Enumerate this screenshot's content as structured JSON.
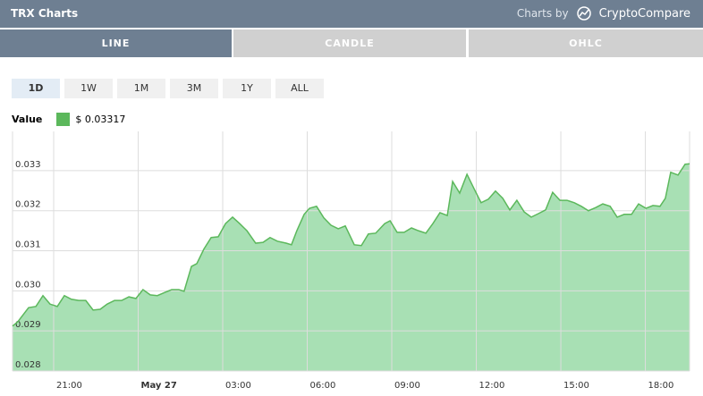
{
  "widget": {
    "title": "TRX Charts",
    "brand_prefix": "Charts by",
    "brand_name": "CryptoCompare",
    "tabs": [
      "LINE",
      "CANDLE",
      "OHLC"
    ],
    "active_tab": 0,
    "ranges": [
      "1D",
      "1W",
      "1M",
      "3M",
      "1Y",
      "ALL"
    ],
    "active_range": 0
  },
  "chart_data": {
    "type": "area",
    "series": [
      {
        "name": "Value",
        "color": "#5cb85c",
        "fill": "#a8e0b4",
        "x": [
          19.54,
          19.73,
          20.11,
          20.37,
          20.62,
          20.87,
          21.13,
          21.38,
          21.63,
          21.89,
          22.14,
          22.4,
          22.65,
          22.9,
          23.16,
          23.41,
          23.67,
          23.92,
          24.17,
          24.43,
          24.68,
          24.94,
          25.19,
          25.44,
          25.63,
          25.89,
          26.08,
          26.33,
          26.59,
          26.84,
          27.1,
          27.35,
          27.6,
          27.86,
          28.17,
          28.43,
          28.68,
          28.94,
          29.25,
          29.44,
          29.63,
          29.89,
          30.08,
          30.33,
          30.59,
          30.84,
          31.1,
          31.35,
          31.67,
          31.92,
          32.17,
          32.43,
          32.75,
          32.94,
          33.19,
          33.44,
          33.7,
          33.95,
          34.21,
          34.46,
          34.71,
          34.97,
          35.16,
          35.41,
          35.67,
          35.92,
          36.17,
          36.43,
          36.68,
          36.94,
          37.19,
          37.44,
          37.7,
          37.95,
          38.21,
          38.46,
          38.71,
          38.97,
          39.22,
          39.48,
          39.73,
          39.98,
          40.24,
          40.49,
          40.75,
          41.0,
          41.25,
          41.51,
          41.76,
          42.02,
          42.27,
          42.52,
          42.71,
          42.9,
          43.16,
          43.41,
          43.57
        ],
        "values": [
          0.02912,
          0.02923,
          0.02958,
          0.02961,
          0.02988,
          0.02967,
          0.02961,
          0.02988,
          0.02979,
          0.02976,
          0.02976,
          0.02952,
          0.02954,
          0.02967,
          0.02976,
          0.02976,
          0.02985,
          0.02981,
          0.03003,
          0.0299,
          0.02988,
          0.02996,
          0.03003,
          0.03003,
          0.02999,
          0.03061,
          0.03068,
          0.03104,
          0.03133,
          0.03135,
          0.03168,
          0.03184,
          0.03168,
          0.0315,
          0.03119,
          0.03121,
          0.03133,
          0.03124,
          0.03119,
          0.03115,
          0.0315,
          0.03191,
          0.03206,
          0.03211,
          0.03182,
          0.03164,
          0.03155,
          0.03162,
          0.03115,
          0.03113,
          0.03142,
          0.03144,
          0.03168,
          0.03175,
          0.03146,
          0.03146,
          0.03157,
          0.0315,
          0.03144,
          0.03168,
          0.03195,
          0.03188,
          0.03273,
          0.03244,
          0.03291,
          0.03255,
          0.0322,
          0.03229,
          0.03249,
          0.03231,
          0.03202,
          0.03226,
          0.03197,
          0.03184,
          0.03193,
          0.03202,
          0.03246,
          0.03226,
          0.03226,
          0.0322,
          0.03211,
          0.032,
          0.03208,
          0.03217,
          0.03211,
          0.03184,
          0.03191,
          0.03191,
          0.03217,
          0.03206,
          0.03213,
          0.03211,
          0.03231,
          0.03296,
          0.03289,
          0.03316,
          0.03317
        ]
      }
    ],
    "legend_value": "$ 0.03317",
    "xlim": [
      19.54,
      43.57
    ],
    "xticks": [
      {
        "value": 21,
        "label": "21:00"
      },
      {
        "value": 24,
        "label": "May 27"
      },
      {
        "value": 27,
        "label": "03:00"
      },
      {
        "value": 30,
        "label": "06:00"
      },
      {
        "value": 33,
        "label": "09:00"
      },
      {
        "value": 36,
        "label": "12:00"
      },
      {
        "value": 39,
        "label": "15:00"
      },
      {
        "value": 42,
        "label": "18:00"
      }
    ],
    "ylim": [
      0.028,
      0.03398
    ],
    "yticks": [
      0.028,
      0.029,
      {
        "value": 0.03,
        "label": "0.030"
      },
      0.031,
      0.032,
      0.033
    ],
    "grid": true
  }
}
